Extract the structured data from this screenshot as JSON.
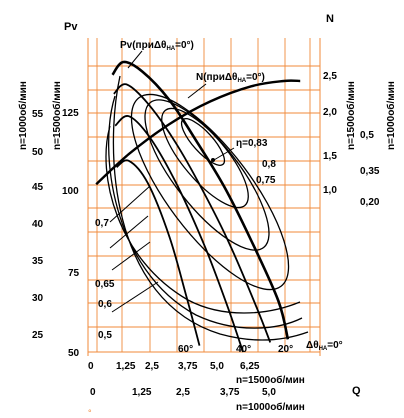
{
  "chart_data": {
    "type": "line",
    "axes": {
      "pv_label": "Pv",
      "n_label": "N",
      "q_label": "Q",
      "rpm1500_label": "n=1500об/мин",
      "rpm1000_label": "n=1000об/мин",
      "pv_ticks_1500": [
        "125",
        "100",
        "75",
        "50"
      ],
      "pv_ticks_1000": [
        "55",
        "50",
        "45",
        "40",
        "35",
        "30",
        "25"
      ],
      "n_ticks_1500": [
        "2,5",
        "2,0",
        "1,5",
        "1,0"
      ],
      "n_ticks_1000": [
        "0,5",
        "0,35",
        "0,20"
      ],
      "q_ticks_1500": [
        "0",
        "1,25",
        "2,5",
        "3,75",
        "5,0",
        "6,25"
      ],
      "q_ticks_1000": [
        "0",
        "1,25",
        "2,5",
        "3,75",
        "5,0"
      ]
    },
    "curve_labels": {
      "pv": "Pv(приΔθ",
      "pv_sub": "НА",
      "pv_end": "=0°)",
      "n": "N(приΔθ",
      "n_sub": "НА",
      "n_end": "=0°)"
    },
    "efficiency_labels": [
      "η=0,83",
      "0,8",
      "0,75",
      "0,7",
      "0,65",
      "0,6",
      "0,5"
    ],
    "angle_labels": [
      "60°",
      "40°",
      "20°"
    ],
    "angle_delta": "Δθ",
    "angle_delta_sub": "НА",
    "angle_delta_end": "=0°",
    "pressure_curves": [
      {
        "name": "0°",
        "q": [
          0.9,
          1.3,
          2.0,
          3.0,
          4.0,
          5.0,
          6.0,
          7.0,
          7.35
        ],
        "pv": [
          137,
          141,
          138,
          129,
          116,
          102,
          85,
          66,
          54
        ]
      },
      {
        "name": "20°",
        "q": [
          0.95,
          1.4,
          2.2,
          3.2,
          4.2,
          5.2,
          6.2,
          6.7
        ],
        "pv": [
          131,
          134,
          128,
          116,
          101,
          84,
          64,
          53
        ]
      },
      {
        "name": "40°",
        "q": [
          1.0,
          1.5,
          2.3,
          3.3,
          4.3,
          5.1,
          5.7
        ],
        "pv": [
          121,
          124,
          117,
          102,
          83,
          65,
          50
        ]
      },
      {
        "name": "60°",
        "q": [
          1.05,
          1.5,
          2.2,
          3.0,
          3.6,
          4.1
        ],
        "pv": [
          108,
          110,
          103,
          86,
          68,
          52
        ]
      }
    ],
    "power_curve_n1500": {
      "q": [
        0.3,
        1.5,
        3.0,
        4.5,
        6.0,
        7.2,
        7.8
      ],
      "n": [
        1.05,
        1.45,
        1.85,
        2.15,
        2.35,
        2.42,
        2.42
      ]
    }
  }
}
